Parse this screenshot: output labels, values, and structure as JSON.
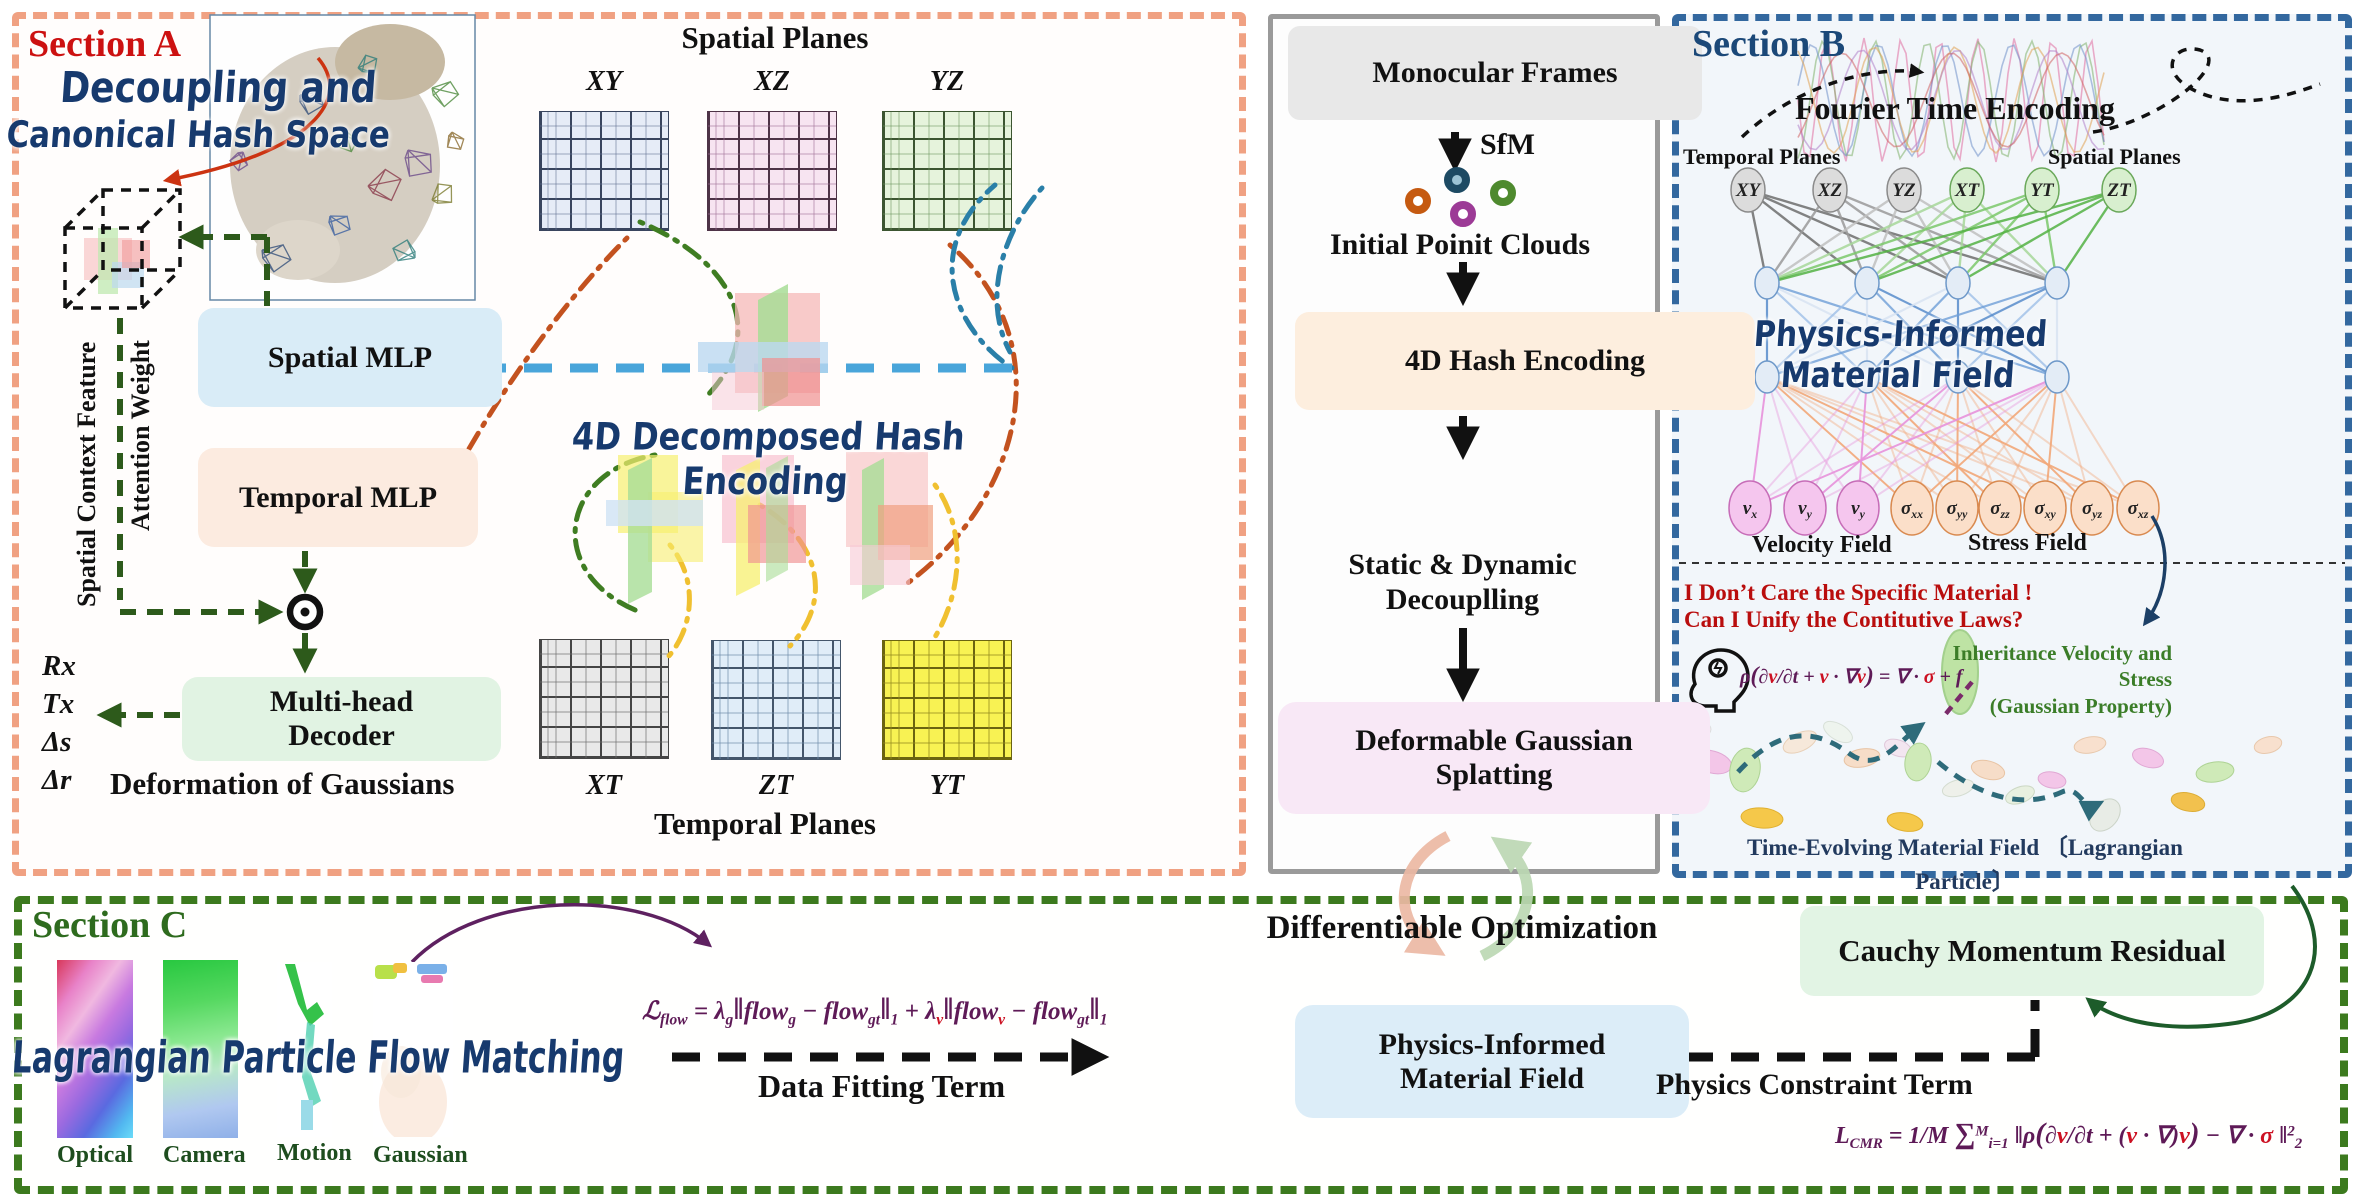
{
  "sectionA": {
    "label": "Section A",
    "hand_title_1": "Decoupling and",
    "hand_title_2": "Canonical Hash Space",
    "vertical_label_feature": "Spatial Context Feature",
    "vertical_label_attention": "Attention Weight",
    "spatial_mlp": "Spatial MLP",
    "temporal_mlp": "Temporal MLP",
    "decoder": "Multi-head Decoder",
    "outputs": [
      "Rx",
      "Tx",
      "Δs",
      "Δr"
    ],
    "deformation_label": "Deformation of Gaussians",
    "spatial_planes_title": "Spatial Planes",
    "hash_title": "4D Decomposed Hash Encoding",
    "temporal_planes_title": "Temporal Planes",
    "spatial_grid_labels": [
      "XY",
      "XZ",
      "YZ"
    ],
    "temporal_grid_labels": [
      "XT",
      "ZT",
      "YT"
    ]
  },
  "pipeline": {
    "monocular": "Monocular Frames",
    "sfm": "SfM",
    "point_clouds": "Initial Poinit Clouds",
    "hash_encoding": "4D Hash Encoding",
    "decoupling": "Static & Dynamic Decouplling",
    "splatting": "Deformable Gaussian Splatting"
  },
  "sectionB": {
    "label": "Section B",
    "fourier_title": "Fourier Time Encoding",
    "temporal_planes_label": "Temporal Planes",
    "spatial_planes_label": "Spatial Planes",
    "input_nodes": [
      "XY",
      "XZ",
      "YZ",
      "XT",
      "YT",
      "ZT"
    ],
    "field_title": "Physics-Informed Material Field",
    "output_nodes": [
      {
        "base": "v",
        "sub": "x"
      },
      {
        "base": "v",
        "sub": "y"
      },
      {
        "base": "v",
        "sub": "y"
      },
      {
        "base": "σ",
        "sub": "xx"
      },
      {
        "base": "σ",
        "sub": "yy"
      },
      {
        "base": "σ",
        "sub": "zz"
      },
      {
        "base": "σ",
        "sub": "xy"
      },
      {
        "base": "σ",
        "sub": "yz"
      },
      {
        "base": "σ",
        "sub": "xz"
      }
    ],
    "velocity_label": "Velocity Field",
    "stress_label": "Stress Field",
    "question_1": "I Don’t Care the Specific Material !",
    "question_2": "Can I Unify the Contitutive Laws?",
    "momentum_eq": [
      {
        "t": "ρ",
        "c": "pu"
      },
      {
        "t": "(",
        "c": "pu lg"
      },
      {
        "t": "∂",
        "c": "pu"
      },
      {
        "t": "v",
        "c": "rd"
      },
      {
        "t": "/∂t + ",
        "c": "pu"
      },
      {
        "t": "v",
        "c": "rd"
      },
      {
        "t": " · ∇",
        "c": "pu"
      },
      {
        "t": "v",
        "c": "rd"
      },
      {
        "t": ")",
        "c": "pu lg"
      },
      {
        "t": " = ∇ · ",
        "c": "pu"
      },
      {
        "t": "σ",
        "c": "rd"
      },
      {
        "t": " + f",
        "c": "pu"
      }
    ],
    "inherit_1": "Inheritance Velocity and Stress",
    "inherit_2": "(Gaussian Property)",
    "evolving_label": "Time-Evolving Material Field 〔Lagrangian Particle〕"
  },
  "sectionC": {
    "label": "Section C",
    "hand_title": "Lagrangian Particle Flow Matching",
    "image_labels": [
      "Optical",
      "Camera",
      "Motion",
      "Gaussian"
    ],
    "flow_formula": [
      {
        "t": "ℒ",
        "c": "pu"
      },
      {
        "t": "flow",
        "c": "pu sb"
      },
      {
        "t": " = ",
        "c": "pu"
      },
      {
        "t": "λ",
        "c": "pu"
      },
      {
        "t": "g",
        "c": "pu sb"
      },
      {
        "t": "‖",
        "c": "pu lg"
      },
      {
        "t": "flow",
        "c": "pu"
      },
      {
        "t": "g",
        "c": "pu sb"
      },
      {
        "t": " − ",
        "c": "pu"
      },
      {
        "t": "flow",
        "c": "pu"
      },
      {
        "t": "gt",
        "c": "pu sb"
      },
      {
        "t": "‖",
        "c": "pu lg"
      },
      {
        "t": "1",
        "c": "pu sb"
      },
      {
        "t": " + ",
        "c": "pu"
      },
      {
        "t": "λ",
        "c": "pu"
      },
      {
        "t": "v",
        "c": "rd sb"
      },
      {
        "t": "‖",
        "c": "pu lg"
      },
      {
        "t": "flow",
        "c": "pu"
      },
      {
        "t": "v",
        "c": "rd sb"
      },
      {
        "t": " − ",
        "c": "pu"
      },
      {
        "t": "flow",
        "c": "pu"
      },
      {
        "t": "gt",
        "c": "pu sb"
      },
      {
        "t": "‖",
        "c": "pu lg"
      },
      {
        "t": "1",
        "c": "pu sb"
      }
    ],
    "data_fitting_label": "Data Fitting Term",
    "diff_opt_label": "Differentiable Optimization",
    "material_field": "Physics-Informed Material Field",
    "constraint_label": "Physics Constraint Term",
    "cauchy_label": "Cauchy Momentum Residual",
    "cmr_formula": [
      {
        "t": "L",
        "c": "pu"
      },
      {
        "t": "CMR",
        "c": "pu sb"
      },
      {
        "t": " = 1/M ",
        "c": "pu"
      },
      {
        "t": "∑",
        "c": "pu lg"
      },
      {
        "t": "M",
        "c": "pu sp"
      },
      {
        "t": "i=1",
        "c": "pu sb"
      },
      {
        "t": " ‖ρ",
        "c": "pu"
      },
      {
        "t": "(",
        "c": "pu lg"
      },
      {
        "t": "∂",
        "c": "pu"
      },
      {
        "t": "v",
        "c": "rd"
      },
      {
        "t": "/∂t + (",
        "c": "pu"
      },
      {
        "t": "v",
        "c": "rd"
      },
      {
        "t": " · ∇)",
        "c": "pu"
      },
      {
        "t": "v",
        "c": "rd"
      },
      {
        "t": ")",
        "c": "pu lg"
      },
      {
        "t": " − ∇ · ",
        "c": "pu"
      },
      {
        "t": "σ",
        "c": "rd"
      },
      {
        "t": " ‖",
        "c": "pu"
      },
      {
        "t": "2",
        "c": "pu sp"
      },
      {
        "t": "2",
        "c": "pu sb"
      }
    ]
  },
  "colors": {
    "section_a_border": "#f0a182",
    "section_b_border": "#33689f",
    "section_c_border": "#3c7a1e",
    "handwritten_navy": "#173a6e",
    "formula_purple": "#5e1a57",
    "formula_red": "#cc1122",
    "green_arrow": "#2d5a1b",
    "blue_arrow": "#49a5da",
    "orange_arrow": "#c3521f"
  }
}
